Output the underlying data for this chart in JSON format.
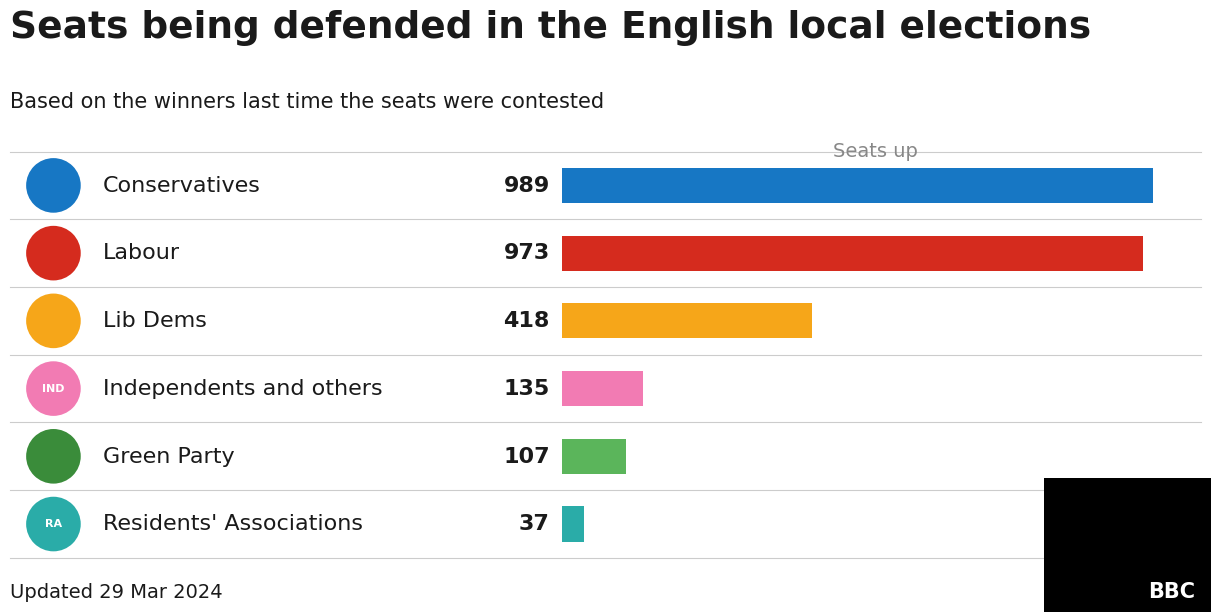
{
  "title": "Seats being defended in the English local elections",
  "subtitle": "Based on the winners last time the seats were contested",
  "axis_label": "Seats up",
  "footer": "Updated 29 Mar 2024",
  "parties": [
    "Conservatives",
    "Labour",
    "Lib Dems",
    "Independents and others",
    "Green Party",
    "Residents' Associations"
  ],
  "values": [
    989,
    973,
    418,
    135,
    107,
    37
  ],
  "bar_colors": [
    "#1777C4",
    "#D52B1E",
    "#F6A619",
    "#F27BB3",
    "#5BB55B",
    "#2AACA8"
  ],
  "icon_colors": [
    "#1777C4",
    "#D52B1E",
    "#F6A619",
    "#F27BB3",
    "#3A8C3A",
    "#2AACA8"
  ],
  "icon_labels": [
    "",
    "",
    "",
    "IND",
    "",
    "RA"
  ],
  "max_value": 1050,
  "background_color": "#ffffff",
  "bar_height": 0.52,
  "value_fontsize": 16,
  "label_fontsize": 16,
  "title_fontsize": 27,
  "subtitle_fontsize": 15,
  "axis_label_fontsize": 14,
  "footer_fontsize": 14,
  "separator_color": "#cccccc",
  "text_color": "#1a1a1a",
  "axis_label_color": "#888888"
}
